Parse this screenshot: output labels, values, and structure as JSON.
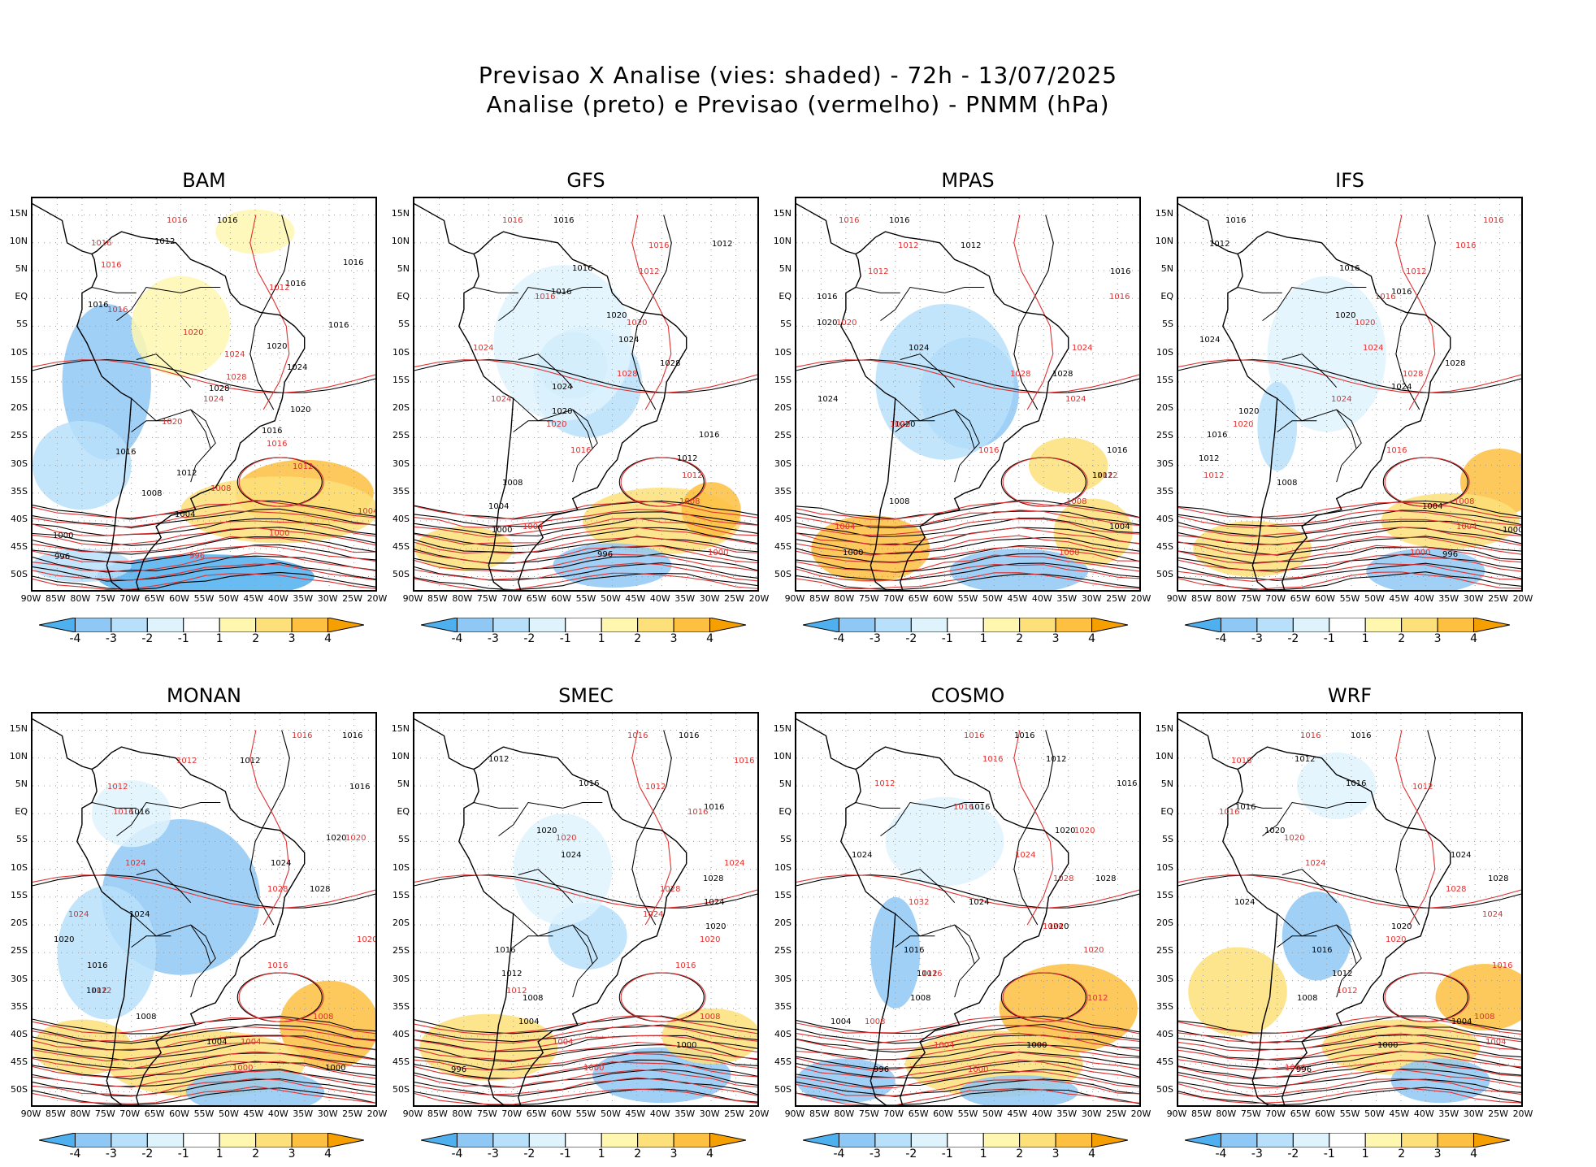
{
  "header": {
    "title_line1": "Previsao X Analise (vies: shaded) - 72h - 13/07/2025",
    "title_line2": "Analise (preto) e Previsao (vermelho) - PNMM (hPa)"
  },
  "panels": [
    {
      "name": "BAM",
      "labels_black": [
        "1016",
        "1012",
        "1016",
        "1016",
        "1016",
        "1016",
        "1020",
        "1024",
        "1028",
        "1020",
        "1016",
        "1016",
        "1012",
        "1008",
        "1004",
        "1000",
        "996"
      ],
      "labels_red": [
        "1016",
        "1016",
        "1016",
        "1012",
        "1016",
        "1020",
        "1024",
        "1028",
        "1024",
        "1020",
        "1016",
        "1012",
        "1008",
        "1004",
        "1000",
        "996"
      ]
    },
    {
      "name": "GFS",
      "labels_black": [
        "1016",
        "1012",
        "1016",
        "1016",
        "1020",
        "1024",
        "1028",
        "1024",
        "1020",
        "1016",
        "1012",
        "1008",
        "1004",
        "1000",
        "996"
      ],
      "labels_red": [
        "1016",
        "1016",
        "1012",
        "1016",
        "1020",
        "1024",
        "1028",
        "1024",
        "1020",
        "1016",
        "1012",
        "1008",
        "1004",
        "1000"
      ]
    },
    {
      "name": "MPAS",
      "labels_black": [
        "1016",
        "1012",
        "1016",
        "1016",
        "1020",
        "1024",
        "1028",
        "1024",
        "1020",
        "1016",
        "1012",
        "1008",
        "1004",
        "1000"
      ],
      "labels_red": [
        "1016",
        "1012",
        "1012",
        "1016",
        "1020",
        "1024",
        "1028",
        "1024",
        "1020",
        "1016",
        "1012",
        "1008",
        "1004",
        "1000"
      ]
    },
    {
      "name": "IFS",
      "labels_black": [
        "1016",
        "1012",
        "1016",
        "1016",
        "1020",
        "1024",
        "1028",
        "1024",
        "1020",
        "1016",
        "1012",
        "1008",
        "1004",
        "1000",
        "996"
      ],
      "labels_red": [
        "1016",
        "1016",
        "1012",
        "1016",
        "1020",
        "1024",
        "1028",
        "1024",
        "1020",
        "1016",
        "1012",
        "1008",
        "1004",
        "1000"
      ]
    },
    {
      "name": "MONAN",
      "labels_black": [
        "1016",
        "1012",
        "1016",
        "1016",
        "1020",
        "1024",
        "1028",
        "1024",
        "1020",
        "1016",
        "1012",
        "1008",
        "1004",
        "1000"
      ],
      "labels_red": [
        "1016",
        "1012",
        "1012",
        "1016",
        "1020",
        "1024",
        "1028",
        "1024",
        "1020",
        "1016",
        "1012",
        "1008",
        "1004",
        "1000"
      ]
    },
    {
      "name": "SMEC",
      "labels_black": [
        "1016",
        "1012",
        "1016",
        "1016",
        "1020",
        "1024",
        "1028",
        "1024",
        "1020",
        "1016",
        "1012",
        "1008",
        "1004",
        "1000",
        "996"
      ],
      "labels_red": [
        "1016",
        "1016",
        "1012",
        "1016",
        "1020",
        "1024",
        "1028",
        "1024",
        "1020",
        "1016",
        "1012",
        "1008",
        "1004",
        "1000"
      ]
    },
    {
      "name": "COSMO",
      "labels_black": [
        "1016",
        "1012",
        "1016",
        "1016",
        "1020",
        "1024",
        "1028",
        "1024",
        "1020",
        "1016",
        "1012",
        "1008",
        "1004",
        "1000",
        "996"
      ],
      "labels_red": [
        "1016",
        "1016",
        "1012",
        "1016",
        "1020",
        "1024",
        "1028",
        "1032",
        "1024",
        "1020",
        "1016",
        "1012",
        "1008",
        "1004",
        "1000"
      ]
    },
    {
      "name": "WRF",
      "labels_black": [
        "1016",
        "1012",
        "1016",
        "1016",
        "1020",
        "1024",
        "1028",
        "1024",
        "1020",
        "1016",
        "1012",
        "1008",
        "1004",
        "1000",
        "996"
      ],
      "labels_red": [
        "1016",
        "1016",
        "1012",
        "1016",
        "1020",
        "1024",
        "1028",
        "1024",
        "1020",
        "1016",
        "1012",
        "1008",
        "1004",
        "1000"
      ]
    }
  ],
  "axes": {
    "lat_labels": [
      "15N",
      "10N",
      "5N",
      "EQ",
      "5S",
      "10S",
      "15S",
      "20S",
      "25S",
      "30S",
      "35S",
      "40S",
      "45S",
      "50S"
    ],
    "lon_labels": [
      "90W",
      "85W",
      "80W",
      "75W",
      "70W",
      "65W",
      "60W",
      "55W",
      "50W",
      "45W",
      "40W",
      "35W",
      "30W",
      "25W",
      "20W"
    ]
  },
  "colorbar": {
    "ticks": [
      "-4",
      "-3",
      "-2",
      "-1",
      "1",
      "2",
      "3",
      "4"
    ],
    "colors": [
      "#4fb0f0",
      "#8fc8f5",
      "#b8e0fa",
      "#dff3fd",
      "#ffffff",
      "#fff7b0",
      "#fde07a",
      "#fdc040",
      "#f5a000"
    ]
  },
  "colors": {
    "analysis_contour": "#000000",
    "forecast_contour": "#e03030",
    "coast": "#000000"
  }
}
